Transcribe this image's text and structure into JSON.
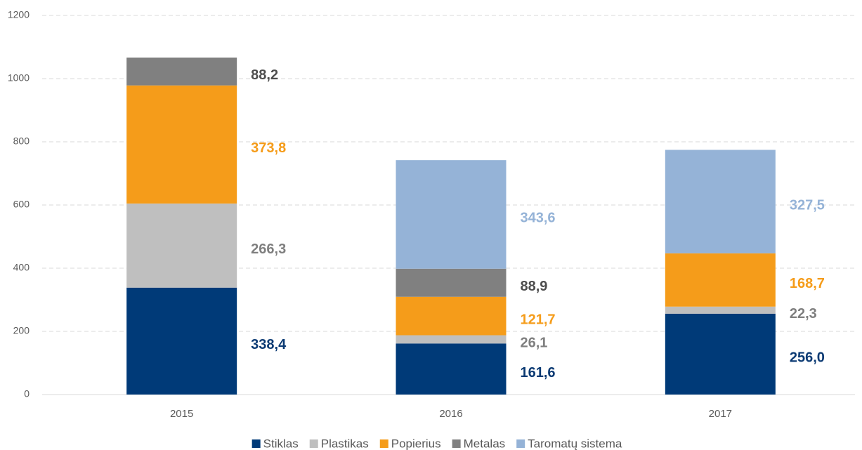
{
  "chart_data": {
    "type": "stacked_bar",
    "categories": [
      "2015",
      "2016",
      "2017"
    ],
    "series": [
      {
        "name": "Stiklas",
        "color": "#003a78",
        "label_color": "#0b3a73",
        "values": [
          338.4,
          161.6,
          256.0
        ],
        "value_labels": [
          "338,4",
          "161,6",
          "256,0"
        ]
      },
      {
        "name": "Plastikas",
        "color": "#bfbfbf",
        "label_color": "#7f7f7f",
        "values": [
          266.3,
          26.1,
          22.3
        ],
        "value_labels": [
          "266,3",
          "26,1",
          "22,3"
        ]
      },
      {
        "name": "Popierius",
        "color": "#f59c1a",
        "label_color": "#f59c1a",
        "values": [
          373.8,
          121.7,
          168.7
        ],
        "value_labels": [
          "373,8",
          "121,7",
          "168,7"
        ]
      },
      {
        "name": "Metalas",
        "color": "#808080",
        "label_color": "#4d4d4d",
        "values": [
          88.2,
          88.9,
          null
        ],
        "value_labels": [
          "88,2",
          "88,9",
          null
        ]
      },
      {
        "name": "Taromatų sistema",
        "color": "#95b3d7",
        "label_color": "#95b3d7",
        "values": [
          null,
          343.6,
          327.5
        ],
        "value_labels": [
          null,
          "343,6",
          "327,5"
        ]
      }
    ],
    "ylim": [
      0,
      1200
    ],
    "yticks": [
      0,
      200,
      400,
      600,
      800,
      1000,
      1200
    ],
    "grid": true,
    "legend": "bottom"
  }
}
